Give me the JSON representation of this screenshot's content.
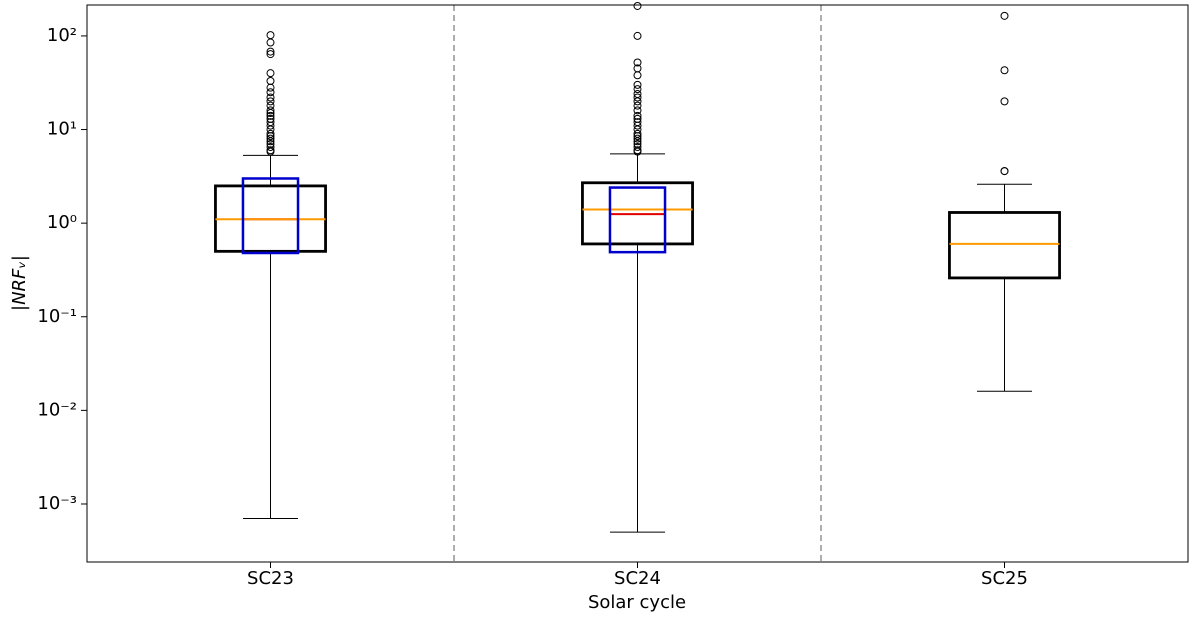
{
  "chart_data": {
    "type": "box",
    "xlabel": "Solar cycle",
    "ylabel": "|NRFᵥ|",
    "categories": [
      "SC23",
      "SC24",
      "SC25"
    ],
    "yscale": "log",
    "ylim": [
      0.00024,
      214
    ],
    "yticks": [
      {
        "value": 0.001,
        "label": "10⁻³"
      },
      {
        "value": 0.01,
        "label": "10⁻²"
      },
      {
        "value": 0.1,
        "label": "10⁻¹"
      },
      {
        "value": 1,
        "label": "10⁰"
      },
      {
        "value": 10,
        "label": "10¹"
      },
      {
        "value": 100,
        "label": "10²"
      }
    ],
    "category_separators": true,
    "box_color": "#000000",
    "median_color": "#ff9900",
    "boxes": [
      {
        "whislo": 0.0007,
        "q1": 0.5,
        "med": 1.1,
        "q3": 2.5,
        "whishi": 5.3,
        "fliers": [
          102,
          85,
          68,
          64,
          40,
          33,
          28,
          25,
          22,
          20,
          18,
          16,
          15,
          14,
          13,
          12,
          11,
          10,
          9,
          8.5,
          8,
          7.5,
          7,
          6.5,
          6,
          5.8
        ]
      },
      {
        "whislo": 0.0005,
        "q1": 0.6,
        "med": 1.4,
        "q3": 2.7,
        "whishi": 5.5,
        "fliers": [
          209,
          100,
          52,
          45,
          38,
          30,
          27,
          24,
          22,
          20,
          18,
          16,
          14,
          13,
          12,
          11,
          10,
          9,
          8.5,
          8,
          7.5,
          7,
          6.5,
          6,
          5.8
        ]
      },
      {
        "whislo": 0.016,
        "q1": 0.26,
        "med": 0.6,
        "q3": 1.3,
        "whishi": 2.6,
        "fliers": [
          164,
          43,
          20,
          3.6,
          3.6
        ]
      }
    ],
    "overlay_color": "#0000cc",
    "overlay_median_color": "#e00000",
    "overlay_boxes": [
      {
        "q1": 0.48,
        "med": 1.1,
        "q3": 3.0
      },
      {
        "q1": 0.49,
        "med": 1.25,
        "q3": 2.4
      },
      null
    ]
  }
}
